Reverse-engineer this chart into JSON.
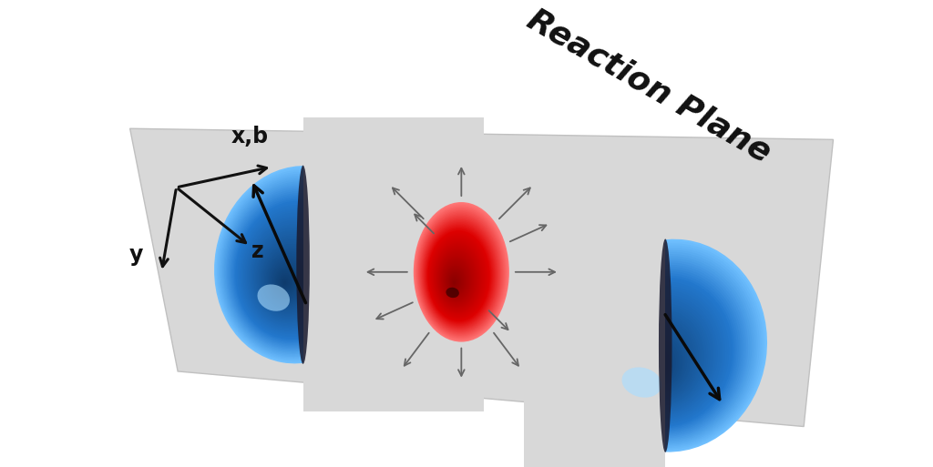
{
  "background_color": "#ffffff",
  "plane_color_light": "#e0e0e0",
  "plane_color_dark": "#c8c8c8",
  "nucleus_blue_light": "#5ab4f5",
  "nucleus_blue_mid": "#2277cc",
  "nucleus_blue_dark": "#0d3a6b",
  "fireball_red_light": "#ff6666",
  "fireball_red_mid": "#ee1111",
  "fireball_red_dark": "#880000",
  "arrow_gray": "#666666",
  "beam_arrow_color": "#0a0a0a",
  "axis_color": "#111111",
  "reaction_plane_text": "Reaction Plane",
  "axis_label_x": "x,b",
  "axis_label_y": "y",
  "axis_label_z": "z",
  "figsize": [
    10.24,
    5.13
  ],
  "dpi": 100
}
